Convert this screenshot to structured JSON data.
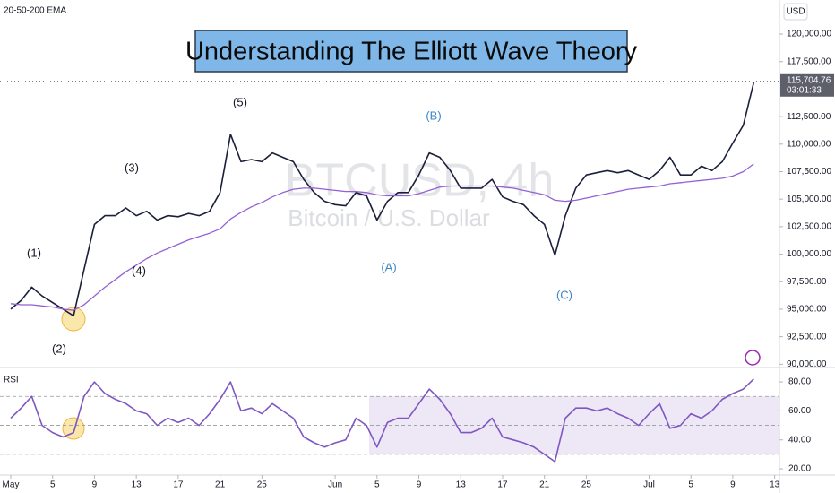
{
  "chart_data": [
    {
      "type": "line",
      "indicator_label": "20-50-200 EMA",
      "title": "Understanding The Elliott Wave Theory",
      "watermark": "BTCUSD, 4h",
      "watermark_subtitle": "Bitcoin / U.S. Dollar",
      "currency": "USD",
      "last_price": 115704.76,
      "last_price_label": "115,704.76",
      "countdown": "03:01:33",
      "x": [
        "May 1",
        "May 2",
        "May 3",
        "May 4",
        "May 5",
        "May 6",
        "May 7",
        "May 8",
        "May 9",
        "May 10",
        "May 11",
        "May 12",
        "May 13",
        "May 14",
        "May 15",
        "May 16",
        "May 17",
        "May 18",
        "May 19",
        "May 20",
        "May 21",
        "May 22",
        "May 23",
        "May 24",
        "May 25",
        "May 26",
        "May 27",
        "May 28",
        "May 29",
        "May 30",
        "May 31",
        "Jun 1",
        "Jun 2",
        "Jun 3",
        "Jun 4",
        "Jun 5",
        "Jun 6",
        "Jun 7",
        "Jun 8",
        "Jun 9",
        "Jun 10",
        "Jun 11",
        "Jun 12",
        "Jun 13",
        "Jun 14",
        "Jun 15",
        "Jun 16",
        "Jun 17",
        "Jun 18",
        "Jun 19",
        "Jun 20",
        "Jun 21",
        "Jun 22",
        "Jun 23",
        "Jun 24",
        "Jun 25",
        "Jun 26",
        "Jun 27",
        "Jun 28",
        "Jun 29",
        "Jun 30",
        "Jul 1",
        "Jul 2",
        "Jul 3",
        "Jul 4",
        "Jul 5",
        "Jul 6",
        "Jul 7",
        "Jul 8",
        "Jul 9",
        "Jul 10",
        "Jul 11",
        "Jul 12",
        "Jul 13"
      ],
      "series": [
        {
          "color": "#1b1f3a",
          "values": [
            95000,
            95800,
            97000,
            96200,
            95600,
            95000,
            94400,
            98600,
            102700,
            103500,
            103500,
            104200,
            103500,
            103900,
            103100,
            103500,
            103400,
            103700,
            103500,
            103900,
            105600,
            110900,
            108400,
            108600,
            108400,
            109200,
            108800,
            108400,
            106800,
            105600,
            104800,
            104500,
            104400,
            105600,
            105300,
            103100,
            104800,
            105600,
            105600,
            107200,
            109200,
            108800,
            107600,
            106000,
            106000,
            106000,
            106800,
            105200,
            104800,
            104500,
            103500,
            102700,
            99900,
            103500,
            106000,
            107200,
            107400,
            107600,
            107400,
            107600,
            107200,
            106800,
            107600,
            108800,
            107200,
            107200,
            108000,
            107600,
            108400,
            110100,
            111700,
            115600,
            null,
            null
          ]
        },
        {
          "color": "#9461d4",
          "values": [
            95500,
            95400,
            95400,
            95300,
            95200,
            95000,
            94900,
            95400,
            96200,
            97000,
            97700,
            98400,
            99000,
            99600,
            100100,
            100500,
            100900,
            101300,
            101600,
            101900,
            102300,
            103200,
            103800,
            104300,
            104700,
            105200,
            105600,
            105900,
            106000,
            106000,
            105900,
            105800,
            105700,
            105700,
            105600,
            105400,
            105300,
            105300,
            105300,
            105500,
            105800,
            106100,
            106200,
            106200,
            106200,
            106200,
            106200,
            106100,
            106000,
            105800,
            105600,
            105400,
            104900,
            104800,
            104900,
            105100,
            105300,
            105500,
            105700,
            105900,
            106000,
            106100,
            106200,
            106400,
            106500,
            106600,
            106700,
            106800,
            106900,
            107100,
            107500,
            108200,
            null,
            null
          ]
        }
      ],
      "annotations": [
        {
          "text": "(1)",
          "color": "#131722"
        },
        {
          "text": "(2)",
          "color": "#131722"
        },
        {
          "text": "(3)",
          "color": "#131722"
        },
        {
          "text": "(4)",
          "color": "#131722"
        },
        {
          "text": "(5)",
          "color": "#131722"
        },
        {
          "text": "(A)",
          "color": "#3d86c6"
        },
        {
          "text": "(B)",
          "color": "#3d86c6"
        },
        {
          "text": "(C)",
          "color": "#3d86c6"
        }
      ],
      "ylim": [
        89700,
        123100
      ],
      "yticks": [
        {
          "value": 90000,
          "label": "90,000.00"
        },
        {
          "value": 92500,
          "label": "92,500.00"
        },
        {
          "value": 95000,
          "label": "95,000.00"
        },
        {
          "value": 97500,
          "label": "97,500.00"
        },
        {
          "value": 100000,
          "label": "100,000.00"
        },
        {
          "value": 102500,
          "label": "102,500.00"
        },
        {
          "value": 105000,
          "label": "105,000.00"
        },
        {
          "value": 107500,
          "label": "107,500.00"
        },
        {
          "value": 110000,
          "label": "110,000.00"
        },
        {
          "value": 112500,
          "label": "112,500.00"
        },
        {
          "value": 117500,
          "label": "117,500.00"
        },
        {
          "value": 120000,
          "label": "120,000.00"
        }
      ],
      "xticks": [
        {
          "value": "May 1",
          "label": "May"
        },
        {
          "value": "May 5",
          "label": "5"
        },
        {
          "value": "May 9",
          "label": "9"
        },
        {
          "value": "May 13",
          "label": "13"
        },
        {
          "value": "May 17",
          "label": "17"
        },
        {
          "value": "May 21",
          "label": "21"
        },
        {
          "value": "May 25",
          "label": "25"
        },
        {
          "value": "Jun 1",
          "label": "Jun"
        },
        {
          "value": "Jun 5",
          "label": "5"
        },
        {
          "value": "Jun 9",
          "label": "9"
        },
        {
          "value": "Jun 13",
          "label": "13"
        },
        {
          "value": "Jun 17",
          "label": "17"
        },
        {
          "value": "Jun 21",
          "label": "21"
        },
        {
          "value": "Jun 25",
          "label": "25"
        },
        {
          "value": "Jul 1",
          "label": "Jul"
        },
        {
          "value": "Jul 5",
          "label": "5"
        },
        {
          "value": "Jul 9",
          "label": "9"
        },
        {
          "value": "Jul 13",
          "label": "13"
        }
      ]
    },
    {
      "type": "line",
      "title": "RSI",
      "series": [
        {
          "color": "#7e57c2",
          "values": [
            55,
            62,
            70,
            50,
            45,
            42,
            45,
            70,
            80,
            72,
            68,
            65,
            60,
            58,
            50,
            55,
            52,
            55,
            50,
            58,
            68,
            80,
            60,
            62,
            58,
            65,
            60,
            55,
            42,
            38,
            35,
            38,
            40,
            55,
            50,
            35,
            52,
            55,
            55,
            65,
            75,
            68,
            58,
            45,
            45,
            48,
            55,
            42,
            40,
            38,
            35,
            30,
            25,
            55,
            62,
            62,
            60,
            62,
            58,
            55,
            50,
            58,
            65,
            48,
            50,
            58,
            55,
            60,
            68,
            72,
            75,
            82,
            null,
            null
          ]
        }
      ],
      "levels": [
        70,
        50,
        30
      ],
      "ylim": [
        15.7,
        88.7
      ],
      "yticks": [
        {
          "value": 20,
          "label": "20.00"
        },
        {
          "value": 40,
          "label": "40.00"
        },
        {
          "value": 60,
          "label": "60.00"
        },
        {
          "value": 80,
          "label": "80.00"
        }
      ]
    }
  ]
}
